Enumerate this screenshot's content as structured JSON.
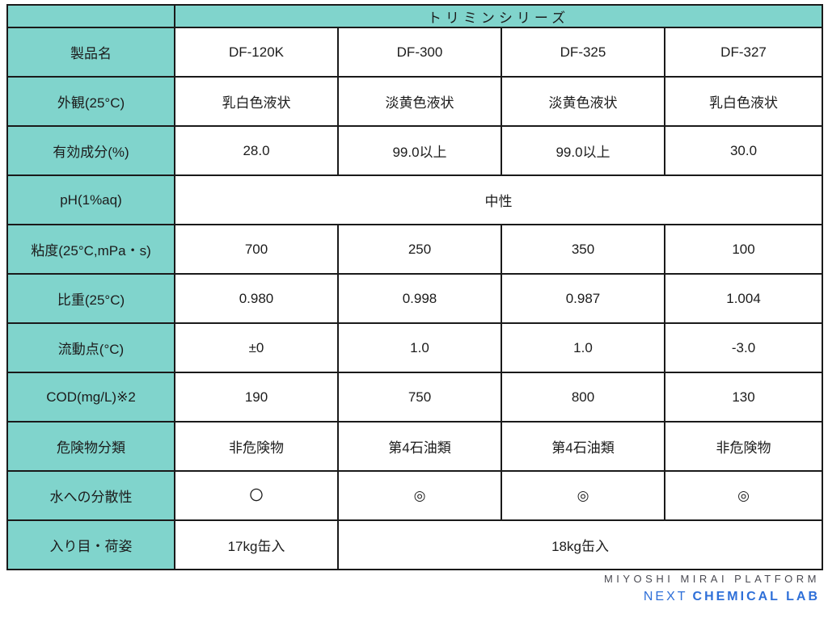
{
  "table": {
    "title": "トリミンシリーズ",
    "corner": "",
    "colors": {
      "header_bg": "#80D4CC",
      "border": "#1a1a1a",
      "text": "#1c1c1c"
    },
    "rows": [
      {
        "label": "製品名",
        "cells": [
          "DF-120K",
          "DF-300",
          "DF-325",
          "DF-327"
        ]
      },
      {
        "label": "外観(25°C)",
        "cells": [
          "乳白色液状",
          "淡黄色液状",
          "淡黄色液状",
          "乳白色液状"
        ]
      },
      {
        "label": "有効成分(%)",
        "cells": [
          "28.0",
          "99.0以上",
          "99.0以上",
          "30.0"
        ]
      },
      {
        "label": "pH(1%aq)",
        "merged": "中性"
      },
      {
        "label": "粘度(25°C,mPa・s)",
        "cells": [
          "700",
          "250",
          "350",
          "100"
        ]
      },
      {
        "label": "比重(25°C)",
        "cells": [
          "0.980",
          "0.998",
          "0.987",
          "1.004"
        ]
      },
      {
        "label": "流動点(°C)",
        "cells": [
          "±0",
          "1.0",
          "1.0",
          "-3.0"
        ]
      },
      {
        "label": "COD(mg/L)※2",
        "cells": [
          "190",
          "750",
          "800",
          "130"
        ]
      },
      {
        "label": "危険物分類",
        "cells": [
          "非危険物",
          "第4石油類",
          "第4石油類",
          "非危険物"
        ]
      },
      {
        "label": "水への分散性",
        "cells": [
          "〇",
          "◎",
          "◎",
          "◎"
        ]
      },
      {
        "label": "入り目・荷姿",
        "cells": [
          "17kg缶入"
        ],
        "merged": "18kg缶入"
      }
    ]
  },
  "footer": {
    "line1": "MIYOSHI MIRAI PLATFORM",
    "line2_light": "NEXT",
    "line2_bold": "CHEMICAL LAB",
    "line1_color": "#4a4a52",
    "line2_color": "#2e6fd8"
  }
}
